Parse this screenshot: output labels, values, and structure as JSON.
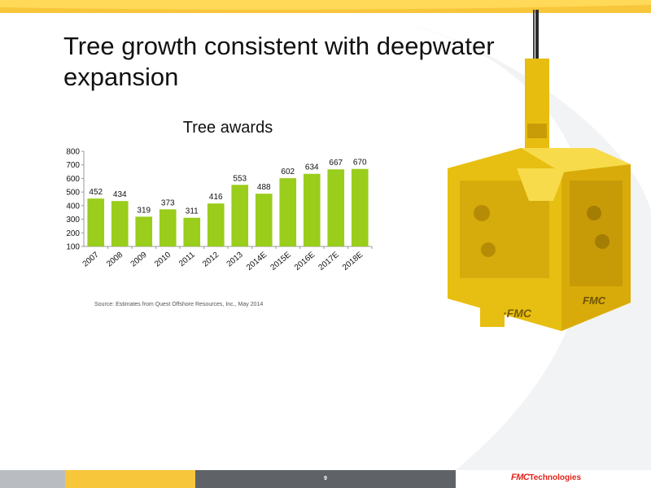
{
  "slide": {
    "title": "Tree growth consistent with deepwater expansion",
    "source": "Source:  Estimates from Quest Offshore Resources, Inc., May 2014",
    "page_number": "9"
  },
  "logo": {
    "brand": "FMC",
    "suffix": "Technologies"
  },
  "colors": {
    "bar": "#9acd1c",
    "accent_yellow": "#f8c63b",
    "footer_gray": "#5f6368",
    "footer_light": "#b9bdc2",
    "logo_red": "#e2231a"
  },
  "chart_data": {
    "type": "bar",
    "title": "Tree awards",
    "categories": [
      "2007",
      "2008",
      "2009",
      "2010",
      "2011",
      "2012",
      "2013",
      "2014E",
      "2015E",
      "2016E",
      "2017E",
      "2018E"
    ],
    "values": [
      452,
      434,
      319,
      373,
      311,
      416,
      553,
      488,
      602,
      634,
      667,
      670
    ],
    "ylim": [
      100,
      800
    ],
    "yticks": [
      100,
      200,
      300,
      400,
      500,
      600,
      700,
      800
    ],
    "grid": false,
    "legend": "none",
    "data_labels": true
  }
}
